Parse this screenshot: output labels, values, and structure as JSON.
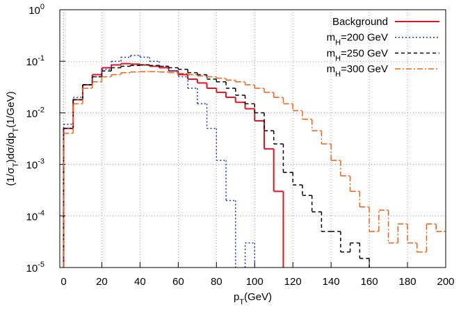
{
  "chart_data": {
    "type": "histogram",
    "x_label": [
      "p",
      "T",
      "(GeV)"
    ],
    "y_label": [
      "(1/σ",
      "T",
      ")dσ/dp",
      "T",
      "(1/GeV)"
    ],
    "bins": [
      0,
      5,
      10,
      15,
      20,
      25,
      30,
      35,
      40,
      45,
      50,
      55,
      60,
      65,
      70,
      75,
      80,
      85,
      90,
      95,
      100,
      105,
      110,
      115,
      120,
      125,
      130,
      135,
      140,
      145,
      150,
      155,
      160,
      165,
      170,
      175,
      180,
      185,
      190,
      195,
      200
    ],
    "xlim": [
      -2,
      200
    ],
    "xticks": [
      0,
      20,
      40,
      60,
      80,
      100,
      120,
      140,
      160,
      180,
      200
    ],
    "ylim": [
      1e-05,
      1
    ],
    "log_y": true,
    "grid": true,
    "legend": "top-right",
    "yticks": [
      {
        "value": 1e-05,
        "label": "10",
        "exp": "-5"
      },
      {
        "value": 0.0001,
        "label": "10",
        "exp": "-4"
      },
      {
        "value": 0.001,
        "label": "10",
        "exp": "-3"
      },
      {
        "value": 0.01,
        "label": "10",
        "exp": "-2"
      },
      {
        "value": 0.1,
        "label": "10",
        "exp": "-1"
      },
      {
        "value": 1,
        "label": "10",
        "exp": "0"
      }
    ],
    "series": [
      {
        "name": [
          "Background"
        ],
        "color": "#e0141e",
        "dash": "solid",
        "values": [
          0.005,
          0.018,
          0.035,
          0.055,
          0.075,
          0.085,
          0.09,
          0.088,
          0.085,
          0.08,
          0.075,
          0.065,
          0.055,
          0.045,
          0.038,
          0.03,
          0.025,
          0.02,
          0.016,
          0.012,
          0.007,
          0.002,
          0.0003,
          null,
          null,
          null,
          null,
          null,
          null,
          null,
          null,
          null,
          null,
          null,
          null,
          null,
          null,
          null,
          null,
          null
        ]
      },
      {
        "name": [
          "m",
          "H",
          "=200 GeV"
        ],
        "color": "#1a32d0",
        "dash": "dot",
        "values": [
          0.006,
          0.02,
          0.035,
          0.05,
          0.07,
          0.1,
          0.12,
          0.13,
          0.12,
          0.1,
          0.08,
          0.065,
          0.05,
          0.03,
          0.015,
          0.005,
          0.0012,
          0.0002,
          null,
          3e-05,
          null,
          null,
          null,
          null,
          null,
          null,
          null,
          null,
          null,
          null,
          null,
          null,
          null,
          null,
          null,
          null,
          null,
          null,
          null,
          null
        ]
      },
      {
        "name": [
          "m",
          "H",
          "=250 GeV"
        ],
        "color": "#000000",
        "dash": "dash",
        "values": [
          0.005,
          0.018,
          0.035,
          0.05,
          0.065,
          0.075,
          0.08,
          0.083,
          0.085,
          0.083,
          0.08,
          0.075,
          0.07,
          0.06,
          0.055,
          0.045,
          0.04,
          0.03,
          0.022,
          0.015,
          0.01,
          0.0045,
          0.0025,
          0.0007,
          0.0004,
          0.00025,
          0.00012,
          5e-05,
          5e-05,
          2e-05,
          3e-05,
          1.5e-05,
          null,
          null,
          null,
          null,
          null,
          null,
          null,
          null
        ]
      },
      {
        "name": [
          "m",
          "H",
          "=300 GeV"
        ],
        "color": "#f06010",
        "dash": "dashdot",
        "values": [
          0.004,
          0.015,
          0.03,
          0.04,
          0.05,
          0.055,
          0.06,
          0.062,
          0.063,
          0.063,
          0.062,
          0.06,
          0.058,
          0.055,
          0.052,
          0.05,
          0.047,
          0.043,
          0.04,
          0.035,
          0.03,
          0.025,
          0.02,
          0.015,
          0.011,
          0.0075,
          0.0045,
          0.0025,
          0.0012,
          0.0006,
          0.0003,
          0.00015,
          5e-05,
          0.00013,
          3e-05,
          7e-05,
          3e-05,
          2e-05,
          7e-05,
          5e-05
        ]
      }
    ]
  }
}
